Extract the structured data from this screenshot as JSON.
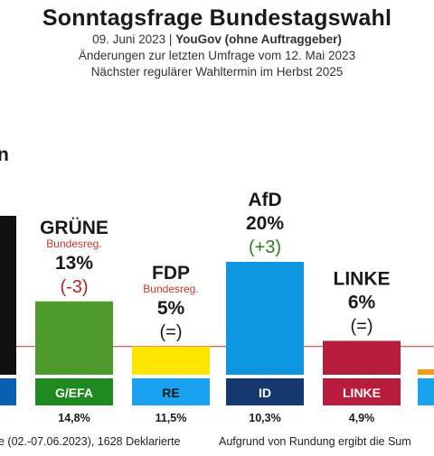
{
  "header": {
    "title": "Sonntagsfrage Bundestagswahl",
    "date": "09. Juni 2023",
    "separator": " | ",
    "pollster": "YouGov (ohne Auftraggeber)",
    "changes_note": "Änderungen zur letzten Umfrage vom 12. Mai 2023",
    "election_note": "Nächster regulärer Wahltermin im Herbst 2025"
  },
  "chart_data": {
    "type": "bar",
    "title": "Sonntagsfrage Bundestagswahl",
    "categories": [
      "(cut off)",
      "GRÜNE",
      "FDP",
      "AfD",
      "LINKE",
      "(cut off)"
    ],
    "visible_letter_left": "n",
    "series": [
      {
        "values": [
          null,
          13,
          5,
          20,
          6,
          null
        ],
        "value_labels": [
          "",
          "13%",
          "5%",
          "20%",
          "6%",
          ""
        ],
        "change_labels": [
          "",
          "(-3)",
          "(=)",
          "(+3)",
          "(=)",
          ""
        ],
        "change_colors": [
          "",
          "#b22222",
          "#1a1a1a",
          "#2e7d1a",
          "#1a1a1a",
          ""
        ],
        "bar_colors": [
          "#111111",
          "#4e9a2c",
          "#ffe600",
          "#0d96e0",
          "#b81c3c",
          "#f39c12"
        ],
        "government_labels": [
          "",
          "Bundesreg.",
          "Bundesreg.",
          "",
          "",
          ""
        ]
      }
    ],
    "ep_groups": {
      "labels": [
        "",
        "G/EFA",
        "RE",
        "ID",
        "LINKE",
        ""
      ],
      "colors": [
        "#0a60b0",
        "#1f8a1f",
        "#19a2f0",
        "#15386e",
        "#b81c3c",
        "#19a2f0"
      ],
      "text_colors": [
        "#ffffff",
        "#ffffff",
        "#1a1a1a",
        "#ffffff",
        "#ffffff",
        "#ffffff"
      ],
      "percentages": [
        "",
        "14,8%",
        "11,5%",
        "10,3%",
        "4,9%",
        ""
      ]
    },
    "threshold_line": true,
    "threshold_color": "#c0392b",
    "footer_left": "e (02.-07.06.2023), 1628 Deklarierte",
    "footer_right": "Aufgrund von Rundung ergibt die Sum"
  }
}
